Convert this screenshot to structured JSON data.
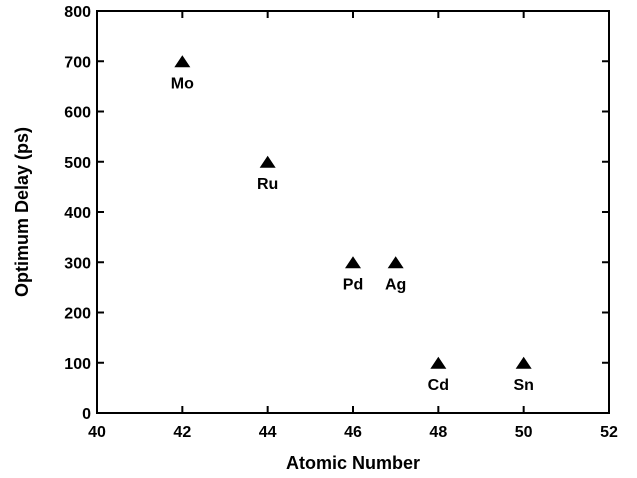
{
  "chart_data": {
    "type": "scatter",
    "title": "",
    "xlabel": "Atomic Number",
    "ylabel": "Optimum Delay (ps)",
    "xlim": [
      40,
      52
    ],
    "ylim": [
      0,
      800
    ],
    "xticks": [
      40,
      42,
      44,
      46,
      48,
      50,
      52
    ],
    "yticks": [
      0,
      100,
      200,
      300,
      400,
      500,
      600,
      700,
      800
    ],
    "grid": false,
    "marker": "triangle",
    "marker_color": "#000000",
    "series": [
      {
        "points": [
          {
            "x": 42,
            "y": 700,
            "label": "Mo"
          },
          {
            "x": 44,
            "y": 500,
            "label": "Ru"
          },
          {
            "x": 46,
            "y": 300,
            "label": "Pd"
          },
          {
            "x": 47,
            "y": 300,
            "label": "Ag"
          },
          {
            "x": 48,
            "y": 100,
            "label": "Cd"
          },
          {
            "x": 50,
            "y": 100,
            "label": "Sn"
          }
        ]
      }
    ]
  }
}
